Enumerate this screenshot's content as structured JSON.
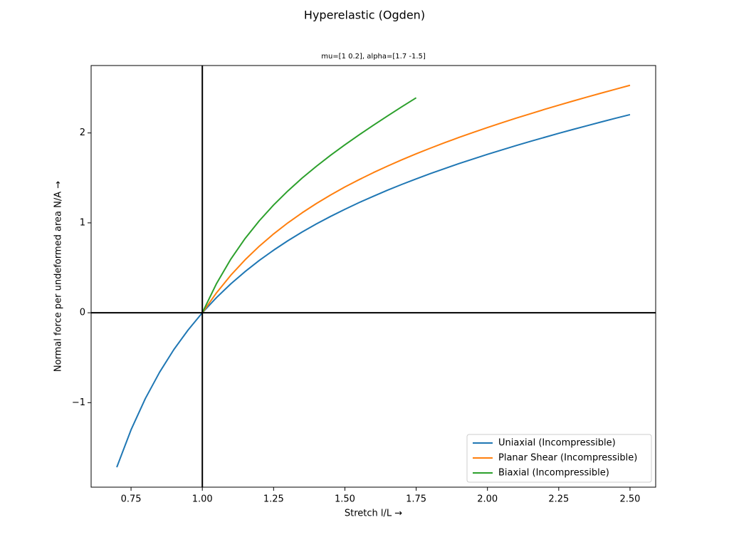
{
  "chart_data": {
    "type": "line",
    "title": "Hyperelastic (Ogden)",
    "subtitle": "mu=[1 0.2], alpha=[1.7 -1.5]",
    "x_label": "Stretch l/L  →",
    "y_label": "Normal force per undeformed area N/A  →",
    "xlim": [
      0.61,
      2.59
    ],
    "ylim": [
      -1.94,
      2.75
    ],
    "xticks": [
      0.75,
      {
        "value": 1,
        "label": "1.00"
      },
      1.25,
      {
        "value": 1.5,
        "label": "1.50"
      },
      1.75,
      {
        "value": 2,
        "label": "2.00"
      },
      2.25,
      {
        "value": 2.5,
        "label": "2.50"
      }
    ],
    "yticks": [
      {
        "value": -1,
        "label": "−1"
      },
      0,
      1,
      2
    ],
    "hlines": [
      0
    ],
    "vlines": [
      1
    ],
    "legend": "lower right",
    "series": [
      {
        "name": "Uniaxial (Incompressible)",
        "color": "#1f77b4",
        "x": [
          0.7,
          0.75,
          0.8,
          0.85,
          0.9,
          0.95,
          1.0,
          1.05,
          1.1,
          1.15,
          1.2,
          1.25,
          1.3,
          1.35,
          1.4,
          1.45,
          1.5,
          1.55,
          1.6,
          1.65,
          1.7,
          1.75,
          1.8,
          1.85,
          1.9,
          1.95,
          2.0,
          2.05,
          2.1,
          2.15,
          2.2,
          2.25,
          2.3,
          2.35,
          2.4,
          2.45,
          2.5
        ],
        "values": [
          -1.718,
          -1.302,
          -0.955,
          -0.662,
          -0.41,
          -0.192,
          0,
          0.17,
          0.322,
          0.458,
          0.583,
          0.696,
          0.801,
          0.898,
          0.988,
          1.072,
          1.151,
          1.226,
          1.296,
          1.364,
          1.428,
          1.489,
          1.548,
          1.604,
          1.659,
          1.711,
          1.762,
          1.811,
          1.859,
          1.906,
          1.951,
          1.996,
          2.039,
          2.081,
          2.123,
          2.164,
          2.204
        ]
      },
      {
        "name": "Planar Shear (Incompressible)",
        "color": "#ff7f0e",
        "x": [
          1.0,
          1.05,
          1.1,
          1.15,
          1.2,
          1.25,
          1.3,
          1.35,
          1.4,
          1.45,
          1.5,
          1.55,
          1.6,
          1.65,
          1.7,
          1.75,
          1.8,
          1.85,
          1.9,
          1.95,
          2.0,
          2.05,
          2.1,
          2.15,
          2.2,
          2.25,
          2.3,
          2.35,
          2.4,
          2.45,
          2.5
        ],
        "values": [
          0,
          0.223,
          0.418,
          0.589,
          0.741,
          0.877,
          1.0,
          1.112,
          1.215,
          1.31,
          1.399,
          1.481,
          1.559,
          1.632,
          1.702,
          1.768,
          1.831,
          1.892,
          1.95,
          2.006,
          2.06,
          2.113,
          2.164,
          2.213,
          2.262,
          2.309,
          2.355,
          2.4,
          2.444,
          2.487,
          2.53
        ]
      },
      {
        "name": "Biaxial (Incompressible)",
        "color": "#2ca02c",
        "x": [
          1.0,
          1.05,
          1.1,
          1.15,
          1.2,
          1.25,
          1.3,
          1.35,
          1.4,
          1.45,
          1.5,
          1.55,
          1.6,
          1.65,
          1.7,
          1.75
        ],
        "values": [
          0,
          0.326,
          0.597,
          0.826,
          1.024,
          1.199,
          1.355,
          1.498,
          1.629,
          1.752,
          1.868,
          1.979,
          2.086,
          2.19,
          2.292,
          2.391
        ]
      }
    ]
  }
}
